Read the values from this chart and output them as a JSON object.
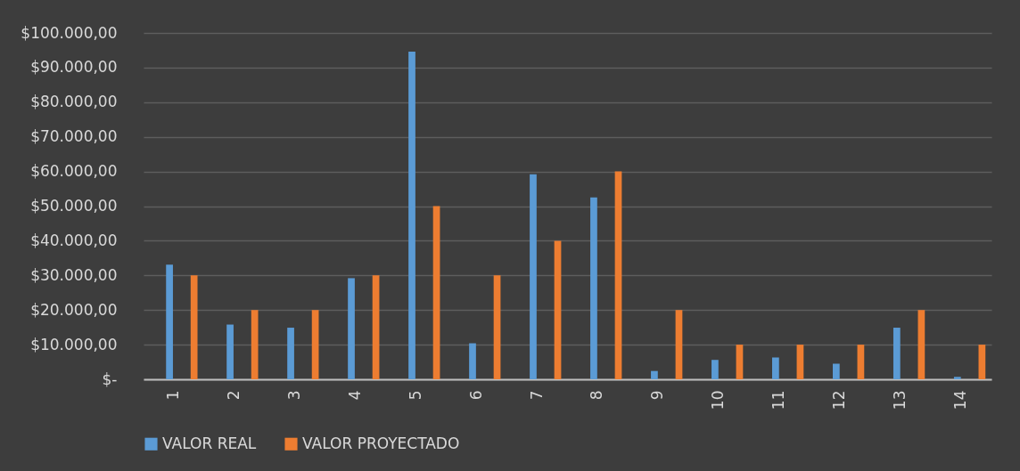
{
  "chart_data": {
    "type": "bar",
    "categories": [
      "1",
      "2",
      "3",
      "4",
      "5",
      "6",
      "7",
      "8",
      "9",
      "10",
      "11",
      "12",
      "13",
      "14"
    ],
    "series": [
      {
        "name": "VALOR REAL",
        "color": "#5b9bd5",
        "values": [
          33100,
          15800,
          14900,
          29200,
          94600,
          10400,
          59200,
          52500,
          2400,
          5600,
          6300,
          4500,
          14900,
          700
        ]
      },
      {
        "name": "VALOR PROYECTADO",
        "color": "#ed7d31",
        "values": [
          30000,
          20000,
          20000,
          30000,
          50000,
          30000,
          40000,
          60000,
          20000,
          10000,
          10000,
          10000,
          20000,
          10000
        ]
      }
    ],
    "ylim": [
      0,
      100000
    ],
    "yticks": [
      {
        "value": 0,
        "label": "$-"
      },
      {
        "value": 10000,
        "label": "$10.000,00"
      },
      {
        "value": 20000,
        "label": "$20.000,00"
      },
      {
        "value": 30000,
        "label": "$30.000,00"
      },
      {
        "value": 40000,
        "label": "$40.000,00"
      },
      {
        "value": 50000,
        "label": "$50.000,00"
      },
      {
        "value": 60000,
        "label": "$60.000,00"
      },
      {
        "value": 70000,
        "label": "$70.000,00"
      },
      {
        "value": 80000,
        "label": "$80.000,00"
      },
      {
        "value": 90000,
        "label": "$90.000,00"
      },
      {
        "value": 100000,
        "label": "$100.000,00"
      }
    ],
    "grid": "y",
    "legend": "bottom"
  }
}
